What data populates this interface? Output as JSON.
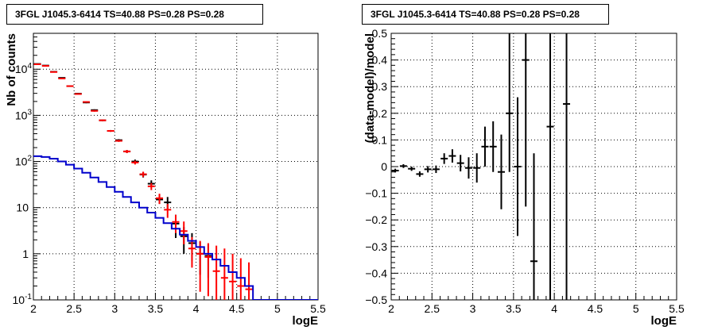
{
  "panels": [
    {
      "title": "3FGL J1045.3-6414 TS=40.88 PS=0.28 PS=0.28"
    },
    {
      "title": "3FGL J1045.3-6414 TS=40.88 PS=0.28 PS=0.28"
    }
  ],
  "chart_data": [
    {
      "type": "line",
      "title": "3FGL J1045.3-6414 TS=40.88 PS=0.28 PS=0.28",
      "xlabel": "logE",
      "ylabel": "Nb of counts",
      "xlim": [
        2,
        5.5
      ],
      "ylim": [
        0.1,
        60000
      ],
      "yscale": "log",
      "grid": true,
      "xticks": [
        "2",
        "2.5",
        "3",
        "3.5",
        "4",
        "4.5",
        "5",
        "5.5"
      ],
      "yticks": [
        {
          "base": "10",
          "exp": "-1"
        },
        {
          "base": "1",
          "exp": ""
        },
        {
          "base": "10",
          "exp": ""
        },
        {
          "base": "10",
          "exp": "2"
        },
        {
          "base": "10",
          "exp": "3"
        },
        {
          "base": "10",
          "exp": "4"
        }
      ],
      "series": [
        {
          "kind": "points",
          "color": "#000000",
          "points": [
            {
              "x": 2.05,
              "y": 13000,
              "lo": 12800,
              "hi": 13200
            },
            {
              "x": 2.15,
              "y": 12000,
              "lo": 11800,
              "hi": 12200
            },
            {
              "x": 2.25,
              "y": 8800,
              "lo": 8600,
              "hi": 9000
            },
            {
              "x": 2.35,
              "y": 6500,
              "lo": 6350,
              "hi": 6650
            },
            {
              "x": 2.45,
              "y": 4300,
              "lo": 4180,
              "hi": 4420
            },
            {
              "x": 2.55,
              "y": 2950,
              "lo": 2850,
              "hi": 3050
            },
            {
              "x": 2.65,
              "y": 1900,
              "lo": 1830,
              "hi": 1970
            },
            {
              "x": 2.75,
              "y": 1300,
              "lo": 1250,
              "hi": 1350
            },
            {
              "x": 2.85,
              "y": 780,
              "lo": 750,
              "hi": 810
            },
            {
              "x": 2.95,
              "y": 460,
              "lo": 440,
              "hi": 480
            },
            {
              "x": 3.05,
              "y": 290,
              "lo": 275,
              "hi": 305
            },
            {
              "x": 3.15,
              "y": 165,
              "lo": 152,
              "hi": 178
            },
            {
              "x": 3.25,
              "y": 100,
              "lo": 90,
              "hi": 110
            },
            {
              "x": 3.35,
              "y": 52,
              "lo": 45,
              "hi": 59
            },
            {
              "x": 3.45,
              "y": 33,
              "lo": 28,
              "hi": 39
            },
            {
              "x": 3.55,
              "y": 15,
              "lo": 12,
              "hi": 19
            },
            {
              "x": 3.65,
              "y": 13,
              "lo": 9,
              "hi": 17
            },
            {
              "x": 3.75,
              "y": 4.5,
              "lo": 2.2,
              "hi": 7
            },
            {
              "x": 3.85,
              "y": 2.4,
              "lo": 1,
              "hi": 3.8
            },
            {
              "x": 3.95,
              "y": 1.7,
              "lo": 0.7,
              "hi": 2.8
            },
            {
              "x": 4.05,
              "y": 1,
              "lo": 0.35,
              "hi": 1.8
            },
            {
              "x": 4.15,
              "y": 0.9,
              "lo": 0.3,
              "hi": 1.6
            }
          ]
        },
        {
          "kind": "points",
          "color": "#ff0000",
          "points": [
            {
              "x": 2.05,
              "y": 12800,
              "lo": 12600,
              "hi": 13000
            },
            {
              "x": 2.15,
              "y": 11800,
              "lo": 11600,
              "hi": 12000
            },
            {
              "x": 2.25,
              "y": 8700,
              "lo": 8500,
              "hi": 8900
            },
            {
              "x": 2.35,
              "y": 6300,
              "lo": 6150,
              "hi": 6450
            },
            {
              "x": 2.45,
              "y": 4300,
              "lo": 4180,
              "hi": 4420
            },
            {
              "x": 2.55,
              "y": 2900,
              "lo": 2800,
              "hi": 3000
            },
            {
              "x": 2.65,
              "y": 1950,
              "lo": 1880,
              "hi": 2020
            },
            {
              "x": 2.75,
              "y": 1250,
              "lo": 1200,
              "hi": 1300
            },
            {
              "x": 2.85,
              "y": 780,
              "lo": 750,
              "hi": 810
            },
            {
              "x": 2.95,
              "y": 460,
              "lo": 440,
              "hi": 480
            },
            {
              "x": 3.05,
              "y": 280,
              "lo": 266,
              "hi": 294
            },
            {
              "x": 3.15,
              "y": 165,
              "lo": 152,
              "hi": 178
            },
            {
              "x": 3.25,
              "y": 95,
              "lo": 86,
              "hi": 104
            },
            {
              "x": 3.35,
              "y": 53,
              "lo": 46,
              "hi": 60
            },
            {
              "x": 3.45,
              "y": 29,
              "lo": 24,
              "hi": 34
            },
            {
              "x": 3.55,
              "y": 16,
              "lo": 12,
              "hi": 20
            },
            {
              "x": 3.65,
              "y": 9,
              "lo": 6,
              "hi": 12
            },
            {
              "x": 3.75,
              "y": 4.9,
              "lo": 2.8,
              "hi": 7
            },
            {
              "x": 3.85,
              "y": 3.1,
              "lo": 1.6,
              "hi": 5
            },
            {
              "x": 3.95,
              "y": 1.3,
              "lo": 0.5,
              "hi": 2.3
            },
            {
              "x": 4.05,
              "y": 1.0,
              "lo": 0.15,
              "hi": 1.9
            },
            {
              "x": 4.15,
              "y": 0.85,
              "lo": 0.12,
              "hi": 1.7
            },
            {
              "x": 4.25,
              "y": 0.42,
              "lo": 0.1,
              "hi": 1.5
            },
            {
              "x": 4.35,
              "y": 0.3,
              "lo": 0.1,
              "hi": 1.3
            },
            {
              "x": 4.45,
              "y": 0.25,
              "lo": 0.1,
              "hi": 1.0
            },
            {
              "x": 4.55,
              "y": 0.2,
              "lo": 0.1,
              "hi": 0.8
            },
            {
              "x": 4.65,
              "y": 0.17,
              "lo": 0.1,
              "hi": 0.65
            }
          ]
        },
        {
          "kind": "step",
          "color": "#0000cc",
          "edges": [
            2.0,
            2.1,
            2.2,
            2.3,
            2.4,
            2.5,
            2.6,
            2.7,
            2.8,
            2.9,
            3.0,
            3.1,
            3.2,
            3.3,
            3.4,
            3.5,
            3.6,
            3.7,
            3.8,
            3.9,
            4.0,
            4.1,
            4.2,
            4.3,
            4.4,
            4.5,
            4.6,
            4.7,
            4.8,
            4.9,
            5.0,
            5.1,
            5.2,
            5.3,
            5.4,
            5.5
          ],
          "values": [
            130,
            125,
            115,
            100,
            85,
            70,
            57,
            45,
            36,
            28,
            22,
            17,
            13,
            10,
            7.8,
            6,
            4.6,
            3.5,
            2.6,
            1.9,
            1.4,
            1.0,
            0.75,
            0.55,
            0.4,
            0.3,
            0.2,
            0.1,
            0.1,
            0.1,
            0.1,
            0.1,
            0.1,
            0.1,
            0.1
          ]
        }
      ]
    },
    {
      "type": "scatter",
      "title": "3FGL J1045.3-6414 TS=40.88 PS=0.28 PS=0.28",
      "xlabel": "logE",
      "ylabel": "(data-model)/model",
      "xlim": [
        2,
        5.5
      ],
      "ylim": [
        -0.5,
        0.5
      ],
      "grid": true,
      "xticks": [
        "2",
        "2.5",
        "3",
        "3.5",
        "4",
        "4.5",
        "5",
        "5.5"
      ],
      "yticks": [
        "−0.5",
        "−0.4",
        "−0.3",
        "−0.2",
        "−0.1",
        "0",
        "0.1",
        "0.2",
        "0.3",
        "0.4",
        "0.5"
      ],
      "series": [
        {
          "color": "#000000",
          "points": [
            {
              "x": 2.05,
              "y": -0.015,
              "lo": -0.022,
              "hi": -0.008
            },
            {
              "x": 2.15,
              "y": 0.002,
              "lo": -0.005,
              "hi": 0.009
            },
            {
              "x": 2.25,
              "y": -0.008,
              "lo": -0.016,
              "hi": 0.0
            },
            {
              "x": 2.35,
              "y": -0.028,
              "lo": -0.038,
              "hi": -0.018
            },
            {
              "x": 2.45,
              "y": -0.01,
              "lo": -0.022,
              "hi": 0.002
            },
            {
              "x": 2.55,
              "y": -0.01,
              "lo": -0.024,
              "hi": 0.004
            },
            {
              "x": 2.65,
              "y": 0.03,
              "lo": 0.01,
              "hi": 0.05
            },
            {
              "x": 2.75,
              "y": 0.04,
              "lo": 0.015,
              "hi": 0.065
            },
            {
              "x": 2.85,
              "y": 0.013,
              "lo": -0.018,
              "hi": 0.044
            },
            {
              "x": 2.95,
              "y": -0.005,
              "lo": -0.045,
              "hi": 0.035
            },
            {
              "x": 3.05,
              "y": -0.005,
              "lo": -0.06,
              "hi": 0.05
            },
            {
              "x": 3.15,
              "y": 0.075,
              "lo": 0.0,
              "hi": 0.15
            },
            {
              "x": 3.25,
              "y": 0.075,
              "lo": -0.02,
              "hi": 0.17
            },
            {
              "x": 3.35,
              "y": -0.02,
              "lo": -0.16,
              "hi": 0.12
            },
            {
              "x": 3.45,
              "y": 0.2,
              "lo": -0.02,
              "hi": 0.5
            },
            {
              "x": 3.55,
              "y": 0.0,
              "lo": -0.26,
              "hi": 0.26
            },
            {
              "x": 3.65,
              "y": 0.4,
              "lo": -0.15,
              "hi": 0.5
            },
            {
              "x": 3.75,
              "y": -0.355,
              "lo": -0.5,
              "hi": 0.05
            },
            {
              "x": 3.95,
              "y": 0.15,
              "lo": -0.5,
              "hi": 0.5
            },
            {
              "x": 4.15,
              "y": 0.235,
              "lo": -0.5,
              "hi": 0.5
            }
          ]
        }
      ]
    }
  ]
}
